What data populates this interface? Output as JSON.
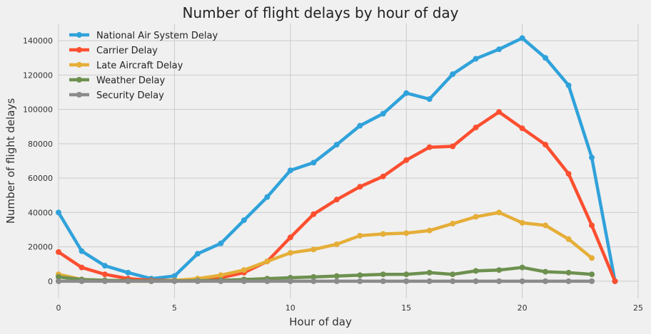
{
  "chart_data": {
    "type": "line",
    "title": "Number of flight delays by hour of day",
    "xlabel": "Hour of day",
    "ylabel": "Number of flight delays",
    "xlim": [
      0,
      25
    ],
    "ylim": [
      -10000,
      150000
    ],
    "xticks": [
      0,
      5,
      10,
      15,
      20,
      25
    ],
    "yticks": [
      0,
      20000,
      40000,
      60000,
      80000,
      100000,
      120000,
      140000
    ],
    "grid": true,
    "legend_position": "top-left",
    "series": [
      {
        "name": "National Air System Delay",
        "color": "#30a2da",
        "x": [
          0,
          1,
          2,
          3,
          4,
          5,
          6,
          7,
          8,
          9,
          10,
          11,
          12,
          13,
          14,
          15,
          16,
          17,
          18,
          19,
          20,
          21,
          22,
          23,
          24
        ],
        "values": [
          40000,
          17500,
          9000,
          5000,
          1500,
          3000,
          16000,
          22000,
          35500,
          49000,
          64500,
          69000,
          79500,
          90500,
          97500,
          109500,
          106000,
          120500,
          129500,
          135000,
          141500,
          130000,
          114000,
          72000,
          0
        ]
      },
      {
        "name": "Carrier Delay",
        "color": "#fc4f30",
        "x": [
          0,
          1,
          2,
          3,
          4,
          5,
          6,
          7,
          8,
          9,
          10,
          11,
          12,
          13,
          14,
          15,
          16,
          17,
          18,
          19,
          20,
          21,
          22,
          23,
          24
        ],
        "values": [
          17000,
          8000,
          4000,
          1500,
          500,
          500,
          500,
          2000,
          5000,
          11500,
          25500,
          39000,
          47500,
          55000,
          61000,
          70500,
          78000,
          78500,
          89500,
          98500,
          89000,
          79500,
          62500,
          32500,
          0
        ]
      },
      {
        "name": "Late Aircraft Delay",
        "color": "#e5ae38",
        "x": [
          0,
          1,
          2,
          3,
          4,
          5,
          6,
          7,
          8,
          9,
          10,
          11,
          12,
          13,
          14,
          15,
          16,
          17,
          18,
          19,
          20,
          21,
          22,
          23
        ],
        "values": [
          4000,
          1000,
          500,
          0,
          0,
          500,
          1500,
          3500,
          6500,
          11500,
          16500,
          18500,
          21500,
          26500,
          27500,
          28000,
          29500,
          33500,
          37500,
          40000,
          34000,
          32500,
          24500,
          13500
        ]
      },
      {
        "name": "Weather Delay",
        "color": "#6d904f",
        "x": [
          0,
          1,
          2,
          3,
          4,
          5,
          6,
          7,
          8,
          9,
          10,
          11,
          12,
          13,
          14,
          15,
          16,
          17,
          18,
          19,
          20,
          21,
          22,
          23
        ],
        "values": [
          2500,
          1000,
          500,
          300,
          200,
          200,
          300,
          500,
          1000,
          1500,
          2000,
          2500,
          3000,
          3500,
          4000,
          4000,
          5000,
          4000,
          6000,
          6500,
          8000,
          5500,
          5000,
          4000
        ]
      },
      {
        "name": "Security Delay",
        "color": "#8b8b8b",
        "x": [
          0,
          1,
          2,
          3,
          4,
          5,
          6,
          7,
          8,
          9,
          10,
          11,
          12,
          13,
          14,
          15,
          16,
          17,
          18,
          19,
          20,
          21,
          22,
          23
        ],
        "values": [
          0,
          0,
          0,
          0,
          0,
          0,
          0,
          0,
          0,
          0,
          0,
          0,
          0,
          0,
          0,
          0,
          0,
          0,
          0,
          0,
          0,
          0,
          0,
          0
        ]
      }
    ]
  }
}
